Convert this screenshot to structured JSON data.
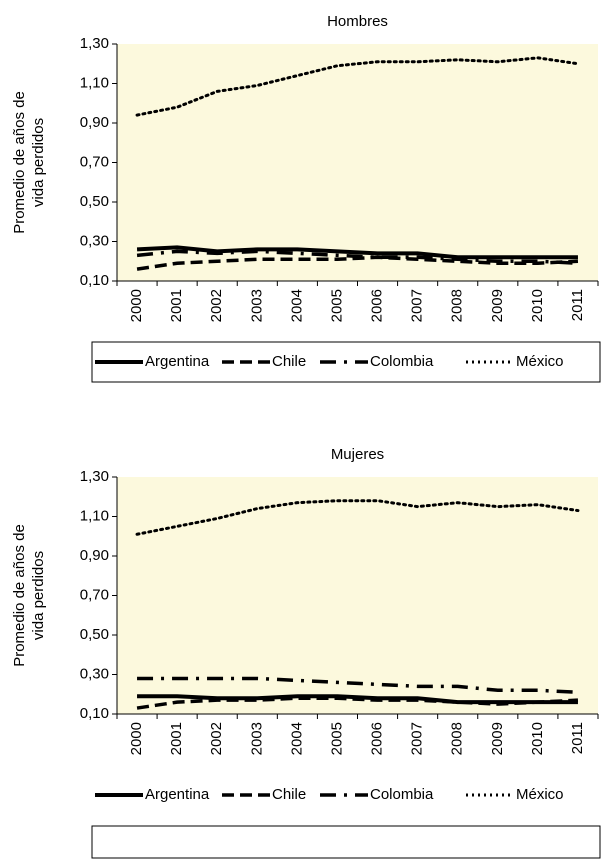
{
  "chart_data": [
    {
      "type": "line",
      "title": "Hombres",
      "y_label": [
        "Promedio de años de",
        "vida perdidos"
      ],
      "categories": [
        "2000",
        "2001",
        "2002",
        "2003",
        "2004",
        "2005",
        "2006",
        "2007",
        "2008",
        "2009",
        "2010",
        "2011"
      ],
      "ylim": [
        0.1,
        1.3
      ],
      "yticks": [
        {
          "value": 0.1,
          "label": "0,10"
        },
        {
          "value": 0.3,
          "label": "0,30"
        },
        {
          "value": 0.5,
          "label": "0,50"
        },
        {
          "value": 0.7,
          "label": "0,70"
        },
        {
          "value": 0.9,
          "label": "0,90"
        },
        {
          "value": 1.1,
          "label": "1,10"
        },
        {
          "value": 1.3,
          "label": "1,30"
        }
      ],
      "series": [
        {
          "name": "Argentina",
          "color": "#000000",
          "values": [
            0.26,
            0.27,
            0.25,
            0.26,
            0.26,
            0.25,
            0.24,
            0.24,
            0.22,
            0.22,
            0.22,
            0.22
          ]
        },
        {
          "name": "Chile",
          "color": "#000000",
          "values": [
            0.16,
            0.19,
            0.2,
            0.21,
            0.21,
            0.21,
            0.22,
            0.21,
            0.2,
            0.19,
            0.19,
            0.2
          ]
        },
        {
          "name": "Colombia",
          "color": "#000000",
          "values": [
            0.23,
            0.25,
            0.24,
            0.25,
            0.24,
            0.23,
            0.22,
            0.22,
            0.21,
            0.2,
            0.2,
            0.19
          ]
        },
        {
          "name": "México",
          "color": "#000000",
          "values": [
            0.94,
            0.98,
            1.06,
            1.09,
            1.14,
            1.19,
            1.21,
            1.21,
            1.22,
            1.21,
            1.23,
            1.2
          ]
        }
      ]
    },
    {
      "type": "line",
      "title": "Mujeres",
      "y_label": [
        "Promedio de años de",
        "vida perdidos"
      ],
      "categories": [
        "2000",
        "2001",
        "2002",
        "2003",
        "2004",
        "2005",
        "2006",
        "2007",
        "2008",
        "2009",
        "2010",
        "2011"
      ],
      "ylim": [
        0.1,
        1.3
      ],
      "yticks": [
        {
          "value": 0.1,
          "label": "0,10"
        },
        {
          "value": 0.3,
          "label": "0,30"
        },
        {
          "value": 0.5,
          "label": "0,50"
        },
        {
          "value": 0.7,
          "label": "0,70"
        },
        {
          "value": 0.9,
          "label": "0,90"
        },
        {
          "value": 1.1,
          "label": "1,10"
        },
        {
          "value": 1.3,
          "label": "1,30"
        }
      ],
      "series": [
        {
          "name": "Argentina",
          "color": "#000000",
          "values": [
            0.19,
            0.19,
            0.18,
            0.18,
            0.19,
            0.19,
            0.18,
            0.18,
            0.16,
            0.16,
            0.16,
            0.16
          ]
        },
        {
          "name": "Chile",
          "color": "#000000",
          "values": [
            0.13,
            0.16,
            0.17,
            0.17,
            0.18,
            0.18,
            0.17,
            0.17,
            0.16,
            0.15,
            0.16,
            0.17
          ]
        },
        {
          "name": "Colombia",
          "color": "#000000",
          "values": [
            0.28,
            0.28,
            0.28,
            0.28,
            0.27,
            0.26,
            0.25,
            0.24,
            0.24,
            0.22,
            0.22,
            0.21
          ]
        },
        {
          "name": "México",
          "color": "#000000",
          "values": [
            1.01,
            1.05,
            1.09,
            1.14,
            1.17,
            1.18,
            1.18,
            1.15,
            1.17,
            1.15,
            1.16,
            1.13
          ]
        }
      ]
    }
  ]
}
